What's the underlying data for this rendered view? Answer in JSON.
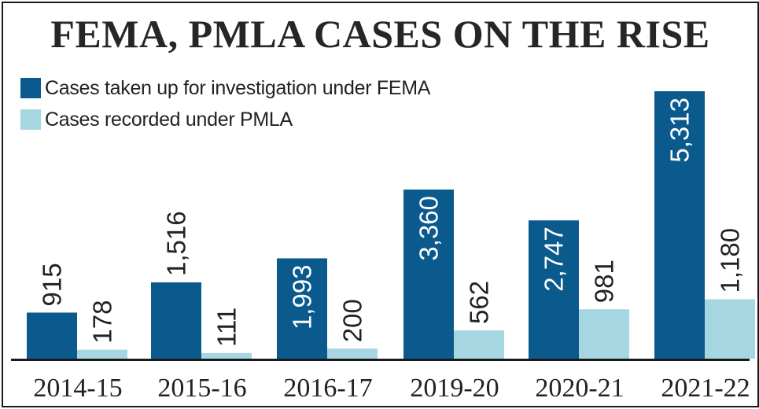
{
  "chart_data": {
    "type": "bar",
    "title": "FEMA, PMLA CASES ON THE RISE",
    "categories": [
      "2014-15",
      "2015-16",
      "2016-17",
      "2019-20",
      "2020-21",
      "2021-22"
    ],
    "series": [
      {
        "name": "Cases taken up for investigation under FEMA",
        "values": [
          915,
          1516,
          1993,
          3360,
          2747,
          5313
        ],
        "labels": [
          "915",
          "1,516",
          "1,993",
          "3,360",
          "2,747",
          "5,313"
        ],
        "color": "#0a5a8e"
      },
      {
        "name": "Cases recorded under PMLA",
        "values": [
          178,
          111,
          200,
          562,
          981,
          1180
        ],
        "labels": [
          "178",
          "111",
          "200",
          "562",
          "981",
          "1,180"
        ],
        "color": "#a7d6e3"
      }
    ],
    "ylim": [
      0,
      5313
    ],
    "grid": false,
    "legend": "top-left"
  }
}
